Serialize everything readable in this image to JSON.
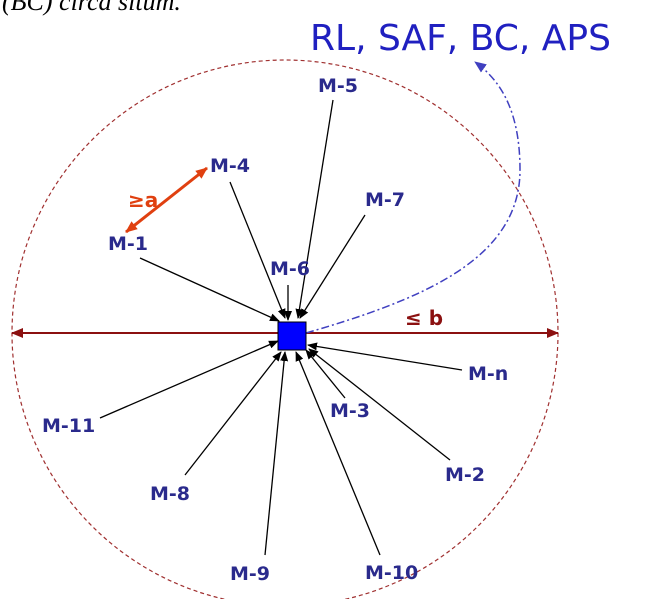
{
  "header": {
    "caption": "(BC) circa situm.",
    "title": "RL, SAF, BC, APS"
  },
  "annotations": {
    "min_distance": "≥a",
    "max_distance": "≤ b"
  },
  "nodes": [
    {
      "label": "M-5"
    },
    {
      "label": "M-4"
    },
    {
      "label": "M-7"
    },
    {
      "label": "M-1"
    },
    {
      "label": "M-6"
    },
    {
      "label": "M-n"
    },
    {
      "label": "M-3"
    },
    {
      "label": "M-2"
    },
    {
      "label": "M-11"
    },
    {
      "label": "M-8"
    },
    {
      "label": "M-9"
    },
    {
      "label": "M-10"
    }
  ]
}
